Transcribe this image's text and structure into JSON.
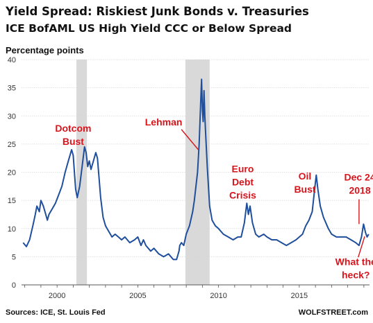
{
  "chart_data": {
    "type": "line",
    "title": "Yield Spread: Riskiest Junk Bonds v. Treasuries",
    "subtitle": "ICE BofAML US High Yield CCC or Below Spread",
    "ylabel": "Percentage points",
    "xlabel": "",
    "ylim": [
      0,
      40
    ],
    "xlim": [
      1997.8,
      2019.35
    ],
    "yticks": [
      0,
      5,
      10,
      15,
      20,
      25,
      30,
      35,
      40
    ],
    "xticks": [
      2000,
      2005,
      2010,
      2015
    ],
    "grid": "horizontal",
    "colors": {
      "line": "#1f4e9c",
      "recession": "#d9d9d9",
      "annotation": "#d8141c"
    },
    "recessions": [
      [
        2001.2,
        2001.85
      ],
      [
        2007.95,
        2009.45
      ]
    ],
    "series": [
      {
        "x": [
          1997.9,
          1998.1,
          1998.3,
          1998.5,
          1998.65,
          1998.75,
          1998.9,
          1999.0,
          1999.15,
          1999.3,
          1999.4,
          1999.5,
          1999.6,
          1999.7,
          1999.9,
          2000.1,
          2000.3,
          2000.5,
          2000.7,
          2000.9,
          2001.0,
          2001.1,
          2001.15,
          2001.25,
          2001.4,
          2001.55,
          2001.7,
          2001.8,
          2001.9,
          2002.0,
          2002.1,
          2002.25,
          2002.4,
          2002.5,
          2002.6,
          2002.7,
          2002.85,
          2003.0,
          2003.2,
          2003.4,
          2003.6,
          2003.8,
          2004.0,
          2004.2,
          2004.5,
          2004.8,
          2005.0,
          2005.2,
          2005.35,
          2005.5,
          2005.8,
          2006.0,
          2006.3,
          2006.6,
          2006.9,
          2007.2,
          2007.4,
          2007.55,
          2007.6,
          2007.7,
          2007.85,
          2008.0,
          2008.2,
          2008.4,
          2008.5,
          2008.6,
          2008.7,
          2008.8,
          2008.9,
          2008.95,
          2009.0,
          2009.05,
          2009.1,
          2009.15,
          2009.2,
          2009.3,
          2009.45,
          2009.6,
          2009.8,
          2010.0,
          2010.3,
          2010.6,
          2010.9,
          2011.2,
          2011.4,
          2011.6,
          2011.75,
          2011.85,
          2011.95,
          2012.1,
          2012.3,
          2012.5,
          2012.8,
          2013.0,
          2013.3,
          2013.6,
          2013.9,
          2014.2,
          2014.5,
          2014.8,
          2015.0,
          2015.2,
          2015.4,
          2015.6,
          2015.8,
          2015.95,
          2016.05,
          2016.15,
          2016.3,
          2016.5,
          2016.8,
          2017.0,
          2017.3,
          2017.6,
          2017.9,
          2018.2,
          2018.5,
          2018.7,
          2018.85,
          2018.98,
          2019.1,
          2019.2,
          2019.3
        ],
        "values": [
          7.5,
          6.8,
          8.0,
          10.5,
          12.5,
          14.0,
          13.0,
          15.0,
          14.0,
          12.5,
          11.5,
          12.5,
          13.0,
          13.5,
          14.5,
          16.0,
          17.5,
          20.0,
          22.0,
          24.0,
          23.0,
          19.0,
          17.0,
          15.5,
          17.5,
          21.0,
          24.5,
          23.5,
          21.0,
          22.0,
          20.5,
          22.0,
          23.5,
          22.5,
          19.0,
          15.5,
          12.0,
          10.5,
          9.5,
          8.5,
          9.0,
          8.5,
          8.0,
          8.5,
          7.5,
          8.0,
          8.5,
          7.0,
          8.0,
          7.0,
          6.0,
          6.5,
          5.5,
          5.0,
          5.5,
          4.5,
          4.5,
          6.0,
          7.0,
          7.5,
          7.0,
          9.0,
          10.5,
          13.0,
          15.0,
          17.5,
          20.0,
          25.0,
          33.0,
          36.5,
          31.0,
          29.0,
          34.5,
          30.0,
          27.0,
          21.0,
          14.0,
          11.5,
          10.5,
          10.0,
          9.0,
          8.5,
          8.0,
          8.5,
          8.5,
          11.0,
          14.5,
          12.5,
          14.0,
          11.0,
          9.0,
          8.5,
          9.0,
          8.5,
          8.0,
          8.0,
          7.5,
          7.0,
          7.5,
          8.0,
          8.5,
          9.0,
          10.5,
          11.5,
          13.0,
          17.0,
          19.5,
          17.0,
          14.0,
          12.0,
          10.0,
          9.0,
          8.5,
          8.5,
          8.5,
          8.0,
          7.5,
          7.0,
          8.5,
          10.8,
          9.3,
          8.5,
          9.0
        ]
      }
    ],
    "annotations": [
      {
        "lines": [
          "Dotcom",
          "Bust"
        ],
        "x": 2001.0,
        "y": 27.2
      },
      {
        "lines": [
          "Lehman"
        ],
        "x": 2006.6,
        "y": 28.3
      },
      {
        "lines": [
          "Euro",
          "Debt",
          "Crisis"
        ],
        "x": 2011.5,
        "y": 20.0
      },
      {
        "lines": [
          "Oil",
          "Bust"
        ],
        "x": 2015.35,
        "y": 18.7
      },
      {
        "lines": [
          "Dec 24",
          "2018"
        ],
        "x": 2018.75,
        "y": 18.5
      },
      {
        "lines": [
          "What the",
          "heck?"
        ],
        "x": 2018.5,
        "y": 3.5
      }
    ],
    "source": "Sources: ICE, St. Louis Fed",
    "brand": "WOLFSTREET.com"
  }
}
